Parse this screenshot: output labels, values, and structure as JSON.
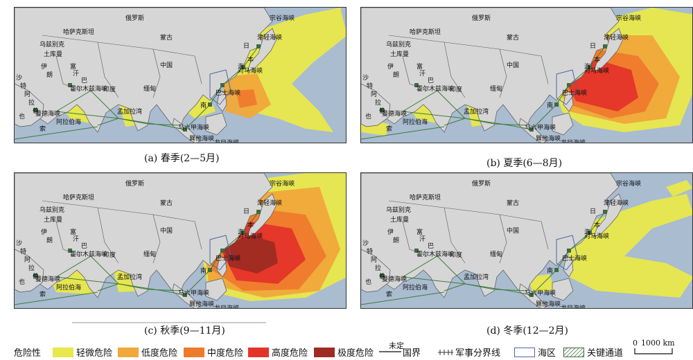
{
  "panels": [
    {
      "id": "a",
      "caption": "(a) 春季(2—5月)",
      "season": "spring",
      "hazard_levels": [
        "light",
        "low",
        "moderate"
      ]
    },
    {
      "id": "b",
      "caption": "(b) 夏季(6—8月)",
      "season": "summer",
      "hazard_levels": [
        "light",
        "low",
        "moderate",
        "high"
      ]
    },
    {
      "id": "c",
      "caption": "(c) 秋季(9—11月)",
      "season": "autumn",
      "hazard_levels": [
        "light",
        "low",
        "moderate",
        "high",
        "extreme"
      ]
    },
    {
      "id": "d",
      "caption": "(d) 冬季(12—2月)",
      "season": "winter",
      "hazard_levels": [
        "light"
      ]
    }
  ],
  "map_labels": {
    "russia": "俄罗斯",
    "kazakhstan": "哈萨克斯坦",
    "mongolia": "蒙古",
    "china": "中国",
    "india": "印度",
    "myanmar": "缅甸",
    "japan_ri": "日",
    "japan_ben": "本",
    "sea_hai": "海",
    "nan": "南",
    "bay_of_bengal": "孟加拉湾",
    "arabian_sea": "阿拉伯海",
    "malacca": "马六甲海峡",
    "lombok": "龙目海峡",
    "sunda": "巽他海峡",
    "tsugaru": "津轻海峡",
    "soya": "宗谷海峡",
    "tsushima": "对马海峡",
    "balintang": "巴士海峡",
    "hormuz": "霍尔木兹海峡",
    "mandeb": "曼德海峡",
    "saudi_sha": "沙",
    "saudi_te": "特",
    "saudi_a": "阿",
    "saudi_la": "拉",
    "saudi_bo": "伯",
    "iran_yi": "伊",
    "iran_lang": "朗",
    "afghan_fu": "富",
    "afghan_han": "汗",
    "pak_ba": "巴",
    "uzbek": "乌兹别克",
    "turkmen": "土库曼",
    "bay_jia": "加",
    "somalia_suo": "索",
    "yemen_ye": "也"
  },
  "legend": {
    "title": "危险性",
    "items": [
      {
        "key": "light",
        "label": "轻微危险",
        "color": "#e8e84a"
      },
      {
        "key": "low",
        "label": "低度危险",
        "color": "#f0a83a"
      },
      {
        "key": "moderate",
        "label": "中度危险",
        "color": "#ee7a2c"
      },
      {
        "key": "high",
        "label": "高度危险",
        "color": "#e4342a"
      },
      {
        "key": "extreme",
        "label": "极度危险",
        "color": "#9e2a22"
      }
    ],
    "undetermined_border_top": "未定",
    "undetermined_border_bottom": "国界",
    "military_line": "军事分界线",
    "sea_area": "海区",
    "key_channel": "关键通道",
    "scale_zero": "0",
    "scale_value": "1000 km"
  },
  "colors": {
    "ocean": "#a9bcd0",
    "land": "#d6d6d6",
    "border": "#555555",
    "route": "#3f7a3a",
    "sea_outline": "#4a66a6",
    "key_channel": "#3f6b3f"
  }
}
